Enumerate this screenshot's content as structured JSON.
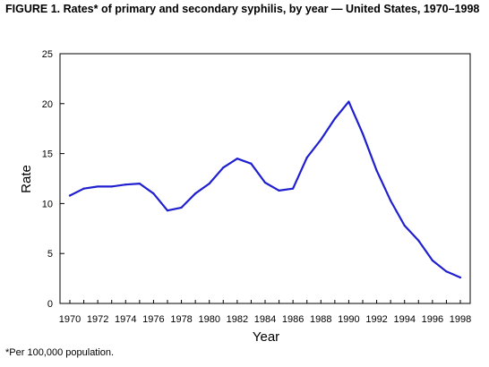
{
  "title": "FIGURE 1. Rates* of primary and secondary syphilis, by year — United States, 1970–1998",
  "footnote": "*Per 100,000 population.",
  "chart_data": {
    "type": "line",
    "title": "FIGURE 1. Rates* of primary and secondary syphilis, by year — United States, 1970–1998",
    "xlabel": "Year",
    "ylabel": "Rate",
    "xlim": [
      1970,
      1998
    ],
    "ylim": [
      0,
      25
    ],
    "xticks": [
      "1970",
      "1972",
      "1974",
      "1976",
      "1978",
      "1980",
      "1982",
      "1984",
      "1986",
      "1988",
      "1990",
      "1992",
      "1994",
      "1996",
      "1998"
    ],
    "yticks": [
      "0",
      "5",
      "10",
      "15",
      "20",
      "25"
    ],
    "grid": false,
    "line_color": "#1f1fd0",
    "x": [
      1970,
      1971,
      1972,
      1973,
      1974,
      1975,
      1976,
      1977,
      1978,
      1979,
      1980,
      1981,
      1982,
      1983,
      1984,
      1985,
      1986,
      1987,
      1988,
      1989,
      1990,
      1991,
      1992,
      1993,
      1994,
      1995,
      1996,
      1997,
      1998
    ],
    "values": [
      10.8,
      11.5,
      11.7,
      11.7,
      11.9,
      12.0,
      11.0,
      9.3,
      9.6,
      11.0,
      12.0,
      13.6,
      14.5,
      14.0,
      12.1,
      11.3,
      11.5,
      14.6,
      16.4,
      18.5,
      20.2,
      17.0,
      13.3,
      10.3,
      7.8,
      6.3,
      4.3,
      3.2,
      2.6
    ]
  }
}
